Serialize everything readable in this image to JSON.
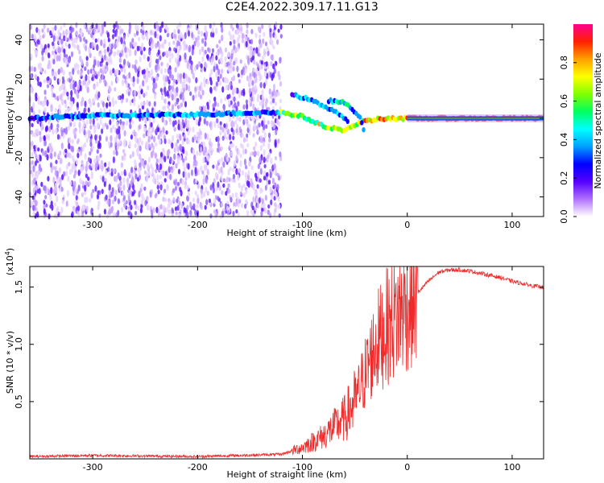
{
  "title": "C2E4.2022.309.17.11.G13",
  "colors": {
    "axis": "#000000",
    "snr_line": "#ee2a2a",
    "background": "#ffffff"
  },
  "chart_data": [
    {
      "type": "heatmap",
      "title": "C2E4.2022.309.17.11.G13",
      "xlabel": "Height of straight line (km)",
      "ylabel": "Frequency (Hz)",
      "xlim": [
        -360,
        130
      ],
      "ylim": [
        -50,
        48
      ],
      "xticks": [
        -300,
        -200,
        -100,
        0,
        100
      ],
      "yticks": [
        -40,
        -20,
        0,
        20,
        40
      ],
      "colorbar": {
        "label": "Normalized spectral amplitude",
        "range": [
          0.0,
          1.0
        ],
        "ticks": [
          "0.0",
          "0.2",
          "0.4",
          "0.6",
          "0.8"
        ],
        "colormap": [
          "#ffffff",
          "#b070ff",
          "#5500ff",
          "#0000ff",
          "#00a0ff",
          "#00ffff",
          "#00ff60",
          "#80ff00",
          "#ffff00",
          "#ffa000",
          "#ff2000",
          "#ff0090"
        ]
      },
      "features": [
        {
          "name": "noise field",
          "x_range": [
            -360,
            -120
          ],
          "y_range": [
            -50,
            48
          ],
          "amplitude": 0.15
        },
        {
          "name": "signal track",
          "points": [
            [
              -360,
              0
            ],
            [
              -300,
              1.5
            ],
            [
              -260,
              1.5
            ],
            [
              -200,
              2
            ],
            [
              -140,
              3
            ],
            [
              -120,
              3
            ],
            [
              -100,
              1
            ],
            [
              -80,
              -4
            ],
            [
              -60,
              -6
            ],
            [
              -40,
              -1
            ],
            [
              -20,
              0
            ],
            [
              0,
              0
            ],
            [
              130,
              0
            ]
          ]
        },
        {
          "name": "split branch upper",
          "points": [
            [
              -75,
              9
            ],
            [
              -60,
              8
            ],
            [
              -45,
              1
            ],
            [
              -40,
              -10
            ]
          ]
        },
        {
          "name": "split branch lower",
          "points": [
            [
              -110,
              12
            ],
            [
              -95,
              10
            ],
            [
              -70,
              4
            ],
            [
              -55,
              -2
            ]
          ]
        }
      ]
    },
    {
      "type": "line",
      "xlabel": "Height of straight line (km)",
      "ylabel": "SNR (10 * v/v)",
      "y_scale_label": "(x10^4)",
      "xlim": [
        -360,
        130
      ],
      "ylim": [
        0,
        16800
      ],
      "xticks": [
        -300,
        -200,
        -100,
        0,
        100
      ],
      "yticks": [
        0.5,
        1.0,
        1.5
      ],
      "series": [
        {
          "x": [
            -360,
            -300,
            -200,
            -120,
            -100,
            -80,
            -60,
            -50,
            -40,
            -30,
            -20,
            -10,
            0,
            10,
            20,
            30,
            40,
            50,
            60,
            70,
            80,
            90,
            100,
            110,
            120,
            130
          ],
          "y": [
            200,
            300,
            200,
            400,
            1000,
            2000,
            3500,
            5000,
            7500,
            10000,
            11500,
            12500,
            13500,
            14500,
            15500,
            16300,
            16500,
            16500,
            16400,
            16200,
            16000,
            15800,
            15500,
            15300,
            15100,
            15000
          ]
        }
      ]
    }
  ]
}
